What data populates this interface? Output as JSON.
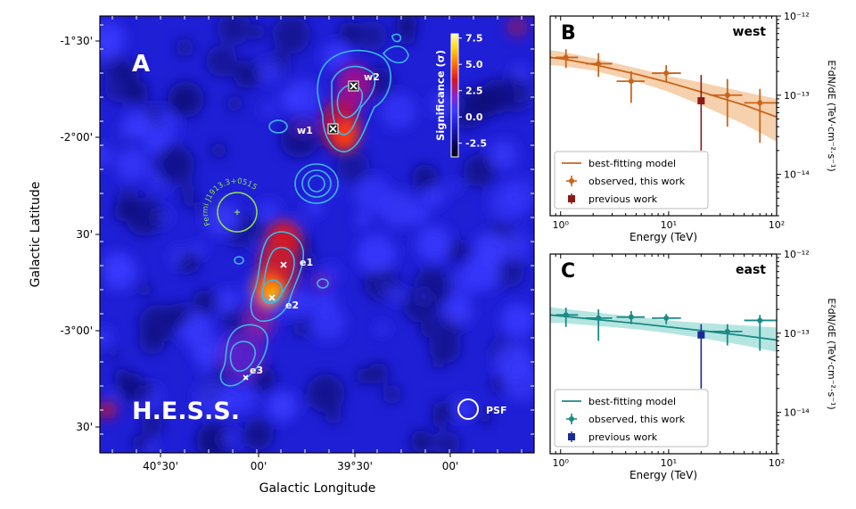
{
  "chart_data": [
    {
      "panel": "A",
      "type": "heatmap",
      "panel_label": "A",
      "instrument": "H.E.S.S.",
      "xlabel": "Galactic Longitude",
      "ylabel": "Galactic Latitude",
      "x_ticks": [
        "40°30'",
        "00'",
        "39°30'",
        "00'"
      ],
      "y_ticks": [
        "-1°30'",
        "-2°00'",
        "30'",
        "-3°00'",
        "30'"
      ],
      "colorbar": {
        "label": "Significance (σ)",
        "ticks": [
          "7.5",
          "5.0",
          "2.5",
          "0.0",
          "-2.5"
        ],
        "range": [
          -3.8,
          7.9
        ],
        "colormap": [
          "#000000",
          "#0a0a6e",
          "#1d1dcc",
          "#3b3bff",
          "#8c22c6",
          "#d8151e",
          "#ff6a00",
          "#ffd200",
          "#ffffb0"
        ]
      },
      "sources": [
        {
          "label": "w2"
        },
        {
          "label": "w1"
        },
        {
          "label": "e1"
        },
        {
          "label": "e2"
        },
        {
          "label": "e3"
        }
      ],
      "fermi_label": "Fermi J1913.3+0515",
      "psf_label": "PSF"
    },
    {
      "panel": "B",
      "type": "scatter",
      "panel_label": "B",
      "region": "west",
      "xlabel": "Energy (TeV)",
      "ylabel": "E²dN/dE (TeV·cm⁻²·s⁻¹)",
      "x_scale": "log",
      "y_scale": "log",
      "xlim": [
        0.8,
        100
      ],
      "ylim": [
        3e-15,
        1e-12
      ],
      "x_ticks": [
        "10⁰",
        "10¹",
        "10²"
      ],
      "y_ticks": [
        "10⁻¹²",
        "10⁻¹³",
        "10⁻¹⁴"
      ],
      "color": "#c8651b",
      "band_color": "#f5c9a0",
      "model": {
        "name": "best-fitting model",
        "x": [
          0.8,
          1,
          2,
          5,
          10,
          20,
          50,
          100
        ],
        "y": [
          3e-13,
          2.9e-13,
          2.45e-13,
          1.85e-13,
          1.45e-13,
          1.1e-13,
          7.5e-14,
          5.3e-14
        ]
      },
      "band_lower": [
        2.4e-13,
        2.35e-13,
        2.05e-13,
        1.5e-13,
        1.1e-13,
        7.5e-14,
        4.3e-14,
        2.6e-14
      ],
      "band_upper": [
        3.7e-13,
        3.55e-13,
        2.95e-13,
        2.2e-13,
        1.75e-13,
        1.45e-13,
        1.1e-13,
        9e-14
      ],
      "observed": {
        "name": "observed, this work",
        "x": [
          1.12,
          2.24,
          4.5,
          9.5,
          35,
          70
        ],
        "y": [
          3e-13,
          2.5e-13,
          1.5e-13,
          1.9e-13,
          1e-13,
          8e-14
        ],
        "y_lo": [
          2.2e-13,
          1.7e-13,
          8e-14,
          1.5e-13,
          4e-14,
          2.5e-14
        ],
        "y_hi": [
          3.8e-13,
          3.4e-13,
          2e-13,
          2.4e-13,
          1.6e-13,
          1.2e-13
        ],
        "x_lo": [
          0.9,
          1.7,
          3.3,
          7.0,
          24,
          50
        ],
        "x_hi": [
          1.45,
          3.0,
          6.0,
          13,
          48,
          100
        ]
      },
      "previous": {
        "name": "previous work",
        "x": [
          20
        ],
        "y": [
          8.5e-14
        ],
        "y_lo": [
          2e-14
        ],
        "y_hi": [
          1.8e-13
        ],
        "color": "#8b1a1a"
      },
      "legend_position": "lower-left"
    },
    {
      "panel": "C",
      "type": "scatter",
      "panel_label": "C",
      "region": "east",
      "xlabel": "Energy (TeV)",
      "ylabel": "E²dN/dE (TeV·cm⁻²·s⁻¹)",
      "x_scale": "log",
      "y_scale": "log",
      "xlim": [
        0.8,
        100
      ],
      "ylim": [
        3e-15,
        1e-12
      ],
      "x_ticks": [
        "10⁰",
        "10¹",
        "10²"
      ],
      "y_ticks": [
        "10⁻¹²",
        "10⁻¹³",
        "10⁻¹⁴"
      ],
      "color": "#1a8a85",
      "band_color": "#a8e0dc",
      "model": {
        "name": "best-fitting model",
        "x": [
          0.8,
          1,
          2,
          5,
          10,
          20,
          50,
          100
        ],
        "y": [
          1.7e-13,
          1.65e-13,
          1.5e-13,
          1.33e-13,
          1.2e-13,
          1.08e-13,
          9.3e-14,
          8.2e-14
        ]
      },
      "band_lower": [
        1.35e-13,
        1.35e-13,
        1.25e-13,
        1.12e-13,
        1e-13,
        8.7e-14,
        7e-14,
        5.8e-14
      ],
      "band_upper": [
        2.15e-13,
        2.05e-13,
        1.85e-13,
        1.6e-13,
        1.45e-13,
        1.35e-13,
        1.25e-13,
        1.18e-13
      ],
      "observed": {
        "name": "observed, this work",
        "x": [
          1.12,
          2.24,
          4.5,
          9.5,
          35,
          70
        ],
        "y": [
          1.7e-13,
          1.55e-13,
          1.6e-13,
          1.55e-13,
          1.05e-13,
          1.45e-13
        ],
        "y_lo": [
          1.2e-13,
          8e-14,
          1.3e-13,
          1.3e-13,
          7e-14,
          6e-14
        ],
        "y_hi": [
          2.1e-13,
          2e-13,
          1.9e-13,
          1.75e-13,
          1.3e-13,
          1.7e-13
        ],
        "x_lo": [
          0.9,
          1.7,
          3.3,
          7.0,
          24,
          50
        ],
        "x_hi": [
          1.45,
          3.0,
          6.0,
          13,
          48,
          100
        ]
      },
      "previous": {
        "name": "previous work",
        "x": [
          20
        ],
        "y": [
          9.5e-14
        ],
        "y_lo": [
          2e-14
        ],
        "y_hi": [
          1.3e-13
        ],
        "color": "#1a2a9a"
      },
      "legend_position": "lower-left"
    }
  ]
}
